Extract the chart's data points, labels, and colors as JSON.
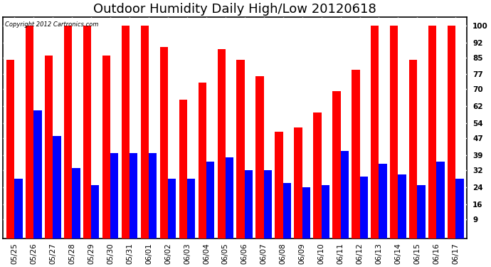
{
  "title": "Outdoor Humidity Daily High/Low 20120618",
  "copyright": "Copyright 2012 Cartronics.com",
  "dates": [
    "05/25",
    "05/26",
    "05/27",
    "05/28",
    "05/29",
    "05/30",
    "05/31",
    "06/01",
    "06/02",
    "06/03",
    "06/04",
    "06/05",
    "06/06",
    "06/07",
    "06/08",
    "06/09",
    "06/10",
    "06/11",
    "06/12",
    "06/13",
    "06/14",
    "06/15",
    "06/16",
    "06/17"
  ],
  "highs": [
    84,
    100,
    86,
    100,
    100,
    86,
    100,
    100,
    90,
    65,
    73,
    89,
    84,
    76,
    50,
    52,
    59,
    69,
    79,
    100,
    100,
    84,
    100,
    100
  ],
  "lows": [
    28,
    60,
    48,
    33,
    25,
    40,
    40,
    40,
    28,
    28,
    36,
    38,
    32,
    32,
    26,
    24,
    25,
    41,
    29,
    35,
    30,
    25,
    36,
    28
  ],
  "bar_color_high": "#ff0000",
  "bar_color_low": "#0000ff",
  "background_color": "#ffffff",
  "plot_bg_color": "#ffffff",
  "grid_color": "#999999",
  "yticks": [
    9,
    16,
    24,
    32,
    39,
    47,
    54,
    62,
    70,
    77,
    85,
    92,
    100
  ],
  "ylim": [
    0,
    104
  ],
  "title_fontsize": 13,
  "tick_fontsize": 7.5,
  "bar_width": 0.42,
  "figsize": [
    6.9,
    3.75
  ],
  "dpi": 100
}
